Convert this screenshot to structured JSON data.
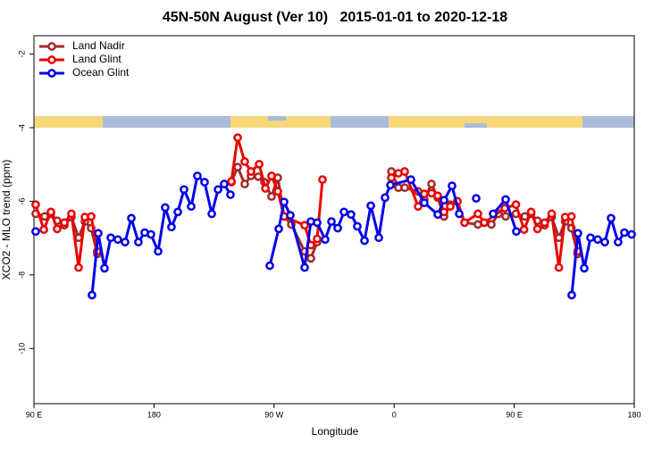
{
  "chart_data": {
    "type": "line",
    "title": "45N-50N August (Ver 10)   2015-01-01 to 2020-12-18",
    "xlabel": "Longitude",
    "ylabel": "XCO2 - MLO trend (ppm)",
    "xlim": [
      90,
      540
    ],
    "xticks": [
      {
        "value": 90,
        "label": "90 E"
      },
      {
        "value": 180,
        "label": "180"
      },
      {
        "value": 270,
        "label": "90 W"
      },
      {
        "value": 360,
        "label": "0"
      },
      {
        "value": 450,
        "label": "90 E"
      },
      {
        "value": 540,
        "label": "180"
      }
    ],
    "ylim": [
      -11.5,
      -1.5
    ],
    "yticks": [
      -2,
      -4,
      -6,
      -8,
      -10
    ],
    "grid": false,
    "legend": "upper left",
    "series": [
      {
        "name": "Land Nadir",
        "color": "#a52a2a",
        "x": [
          91.3,
          98.0,
          102.7,
          107.4,
          112.8,
          118.1,
          123.5,
          128.2,
          132.9,
          137.5,
          null,
          238.0,
          242.7,
          248.0,
          252.7,
          258.1,
          262.8,
          268.1,
          272.8,
          277.5,
          282.9,
          292.9,
          297.6,
          302.3,
          null,
          357.9,
          363.2,
          367.9,
          378.0,
          382.6,
          388.0,
          392.7,
          397.4,
          402.1,
          407.4,
          412.8,
          422.8,
          427.5,
          432.9,
          438.2,
          443.6,
          451.3,
          458.0,
          462.7,
          467.4,
          472.8,
          478.1,
          483.5,
          488.2,
          492.9,
          497.5
        ],
        "values": [
          -6.34,
          -6.41,
          -6.34,
          -6.53,
          -6.65,
          -6.43,
          -6.99,
          -6.55,
          -6.73,
          -7.43,
          null,
          -5.48,
          -5.07,
          -5.53,
          -5.31,
          -5.33,
          -5.48,
          -5.87,
          -5.36,
          -6.41,
          -6.63,
          -7.36,
          -7.55,
          -7.11,
          null,
          -5.19,
          -5.63,
          -5.63,
          -5.73,
          -5.95,
          -5.53,
          -5.9,
          -6.41,
          -6.09,
          -6.0,
          -6.58,
          -6.63,
          -6.58,
          -6.63,
          -6.34,
          -6.41,
          -6.34,
          -6.41,
          -6.34,
          -6.53,
          -6.65,
          -6.43,
          -6.99,
          -6.55,
          -6.73,
          -7.43
        ]
      },
      {
        "name": "Land Glint",
        "color": "#ee0000",
        "x": [
          91.3,
          97.4,
          102.7,
          107.4,
          112.8,
          118.1,
          123.5,
          128.2,
          132.9,
          137.5,
          null,
          238.0,
          242.7,
          248.0,
          252.7,
          258.8,
          263.5,
          268.1,
          272.8,
          277.5,
          292.9,
          297.6,
          302.3,
          306.3,
          null,
          357.9,
          363.2,
          367.9,
          378.0,
          382.6,
          388.0,
          392.7,
          397.4,
          402.1,
          407.4,
          412.8,
          422.8,
          427.5,
          442.9,
          451.3,
          457.4,
          462.7,
          467.4,
          472.8,
          478.1,
          483.5,
          488.2,
          492.9,
          497.5
        ],
        "values": [
          -6.09,
          -6.77,
          -6.29,
          -6.75,
          -6.58,
          -6.34,
          -7.8,
          -6.43,
          -6.41,
          -7.36,
          null,
          -5.46,
          -4.27,
          -4.92,
          -5.19,
          -4.99,
          -5.65,
          -5.31,
          -5.73,
          -6.41,
          -6.65,
          -7.19,
          -7.02,
          -5.41,
          null,
          -5.36,
          -5.24,
          -5.19,
          -6.14,
          -5.8,
          -5.78,
          -5.85,
          -6.29,
          -6.14,
          -6.0,
          -6.58,
          -6.34,
          -6.58,
          -6.19,
          -6.09,
          -6.77,
          -6.29,
          -6.75,
          -6.58,
          -6.34,
          -7.8,
          -6.43,
          -6.41,
          -7.36
        ]
      },
      {
        "name": "Ocean Glint",
        "color": "#0000ee",
        "x": [
          91.3,
          null,
          133.5,
          138.2,
          142.9,
          147.6,
          152.9,
          158.3,
          163.0,
          168.3,
          173.0,
          177.7,
          183.1,
          188.4,
          193.1,
          197.8,
          202.5,
          207.9,
          212.5,
          217.9,
          223.3,
          228.0,
          232.6,
          237.3,
          null,
          266.8,
          273.5,
          277.5,
          282.2,
          292.9,
          297.6,
          302.3,
          308.3,
          313.0,
          317.7,
          322.4,
          327.7,
          332.4,
          337.8,
          342.5,
          348.5,
          353.2,
          357.2,
          372.6,
          382.6,
          392.7,
          397.4,
          403.4,
          408.8,
          null,
          421.5,
          null,
          434.2,
          443.6,
          451.6,
          null,
          493.1,
          497.8,
          502.5,
          507.2,
          512.6,
          517.9,
          522.6,
          527.9,
          532.6,
          538.0
        ],
        "values": [
          -6.82,
          null,
          -8.55,
          -6.87,
          -7.82,
          -6.99,
          -7.04,
          -7.11,
          -6.46,
          -7.11,
          -6.85,
          -6.9,
          -7.36,
          -6.17,
          -6.7,
          -6.29,
          -5.68,
          -6.14,
          -5.31,
          -5.48,
          -6.34,
          -5.68,
          -5.53,
          -5.82,
          null,
          -7.75,
          -6.75,
          -6.02,
          -6.38,
          -7.8,
          -6.55,
          -6.58,
          -7.04,
          -6.55,
          -6.73,
          -6.29,
          -6.36,
          -6.68,
          -7.07,
          -6.12,
          -6.99,
          -5.9,
          -5.56,
          -5.41,
          -6.04,
          -6.36,
          -5.97,
          -5.58,
          -6.34,
          null,
          -5.92,
          null,
          -6.34,
          -5.95,
          -6.82,
          null,
          -8.55,
          -6.87,
          -7.82,
          -6.99,
          -7.04,
          -7.11,
          -6.46,
          -7.11,
          -6.85,
          -6.9
        ]
      }
    ]
  }
}
